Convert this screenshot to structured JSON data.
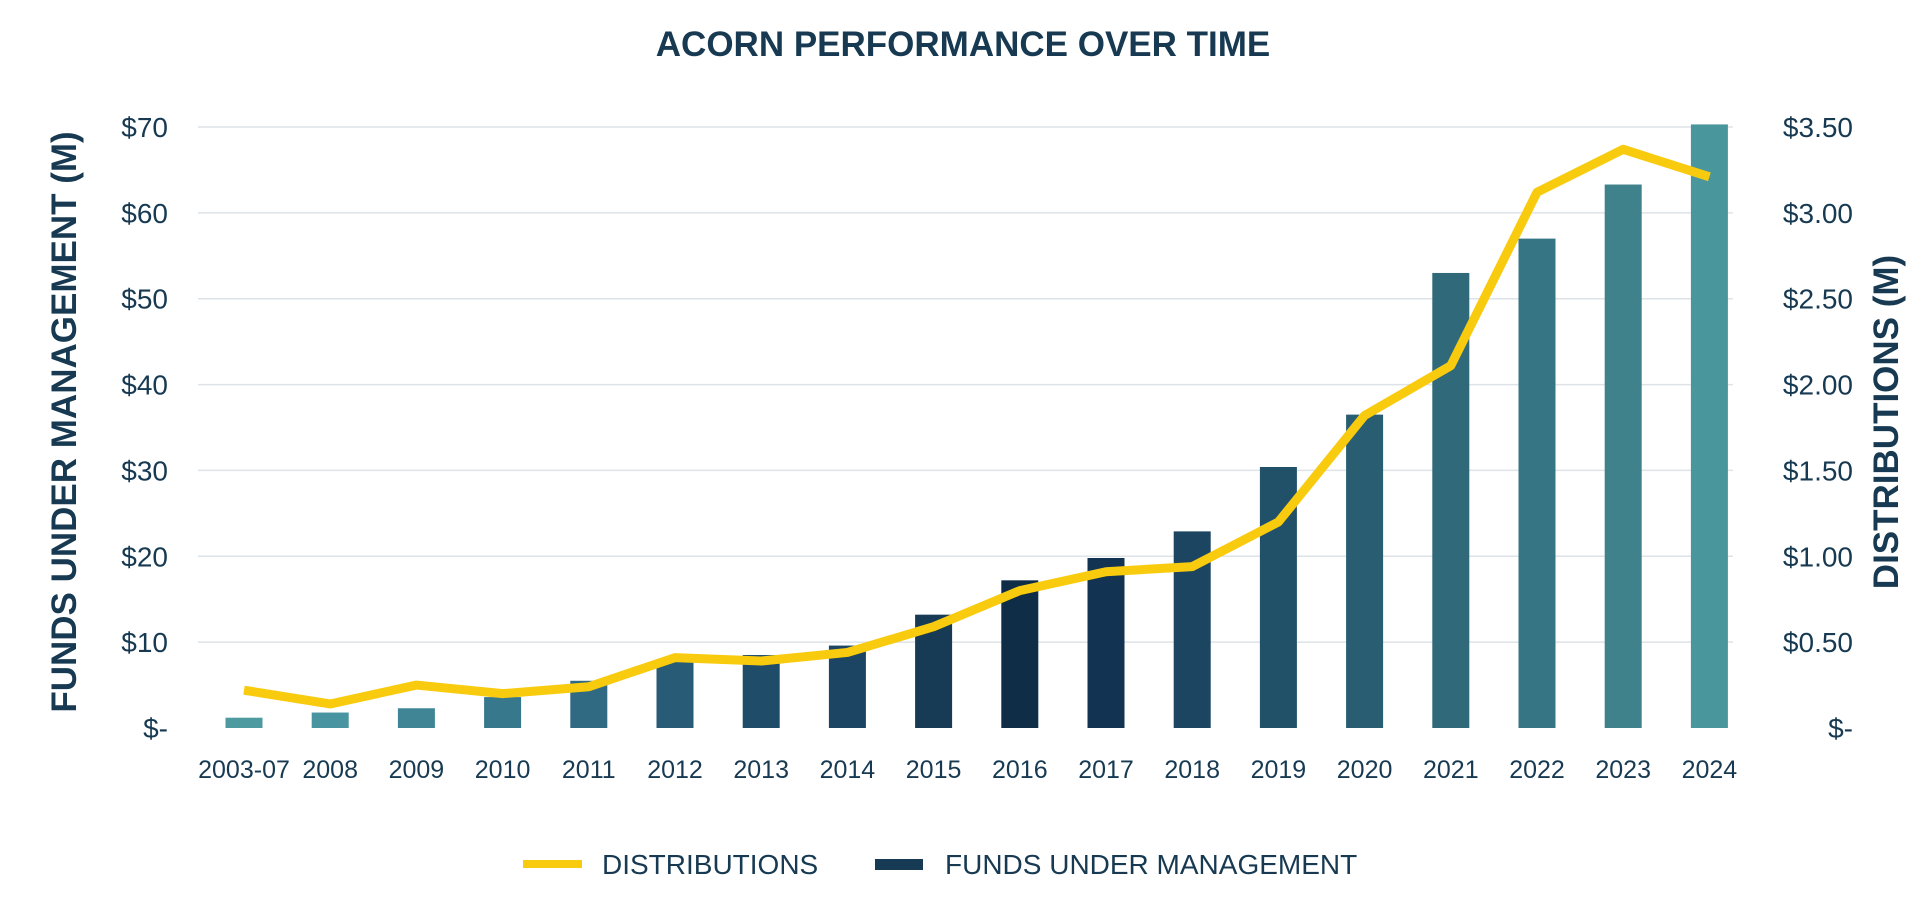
{
  "chart_data": {
    "type": "bar",
    "title": "ACORN PERFORMANCE OVER TIME",
    "categories": [
      "2003-07",
      "2008",
      "2009",
      "2010",
      "2011",
      "2012",
      "2013",
      "2014",
      "2015",
      "2016",
      "2017",
      "2018",
      "2019",
      "2020",
      "2021",
      "2022",
      "2023",
      "2024"
    ],
    "ylabel": "FUNDS UNDER MANAGEMENT (M)",
    "y2label": "DISTRIBUTIONS (M)",
    "ylim": [
      0,
      70
    ],
    "y2lim": [
      0,
      3.5
    ],
    "yticks": [
      "$-",
      "$10",
      "$20",
      "$30",
      "$40",
      "$50",
      "$60",
      "$70"
    ],
    "y2ticks": [
      "$-",
      "$0.50",
      "$1.00",
      "$1.50",
      "$2.00",
      "$2.50",
      "$3.00",
      "$3.50"
    ],
    "grid": true,
    "legend_position": "bottom",
    "series": [
      {
        "name": "FUNDS UNDER MANAGEMENT",
        "type": "bar",
        "axis": "left",
        "values": [
          1.2,
          1.8,
          2.3,
          3.6,
          5.5,
          7.7,
          8.5,
          9.6,
          13.2,
          17.2,
          19.8,
          22.9,
          30.4,
          36.5,
          53.0,
          57.0,
          63.3,
          70.3
        ]
      },
      {
        "name": "DISTRIBUTIONS",
        "type": "line",
        "axis": "right",
        "values": [
          0.22,
          0.14,
          0.25,
          0.2,
          0.24,
          0.41,
          0.39,
          0.44,
          0.59,
          0.8,
          0.91,
          0.94,
          1.2,
          1.82,
          2.11,
          3.12,
          3.37,
          3.21
        ]
      }
    ],
    "bar_colors": [
      "#4d9aa0",
      "#4894a0",
      "#3f8595",
      "#37788c",
      "#2f6a82",
      "#275b76",
      "#1f4d69",
      "#1c4563",
      "#173a55",
      "#102d48",
      "#123352",
      "#1b4560",
      "#215169",
      "#285d72",
      "#2f697a",
      "#367583",
      "#3f828b",
      "#4a969d"
    ],
    "line_color": "#f9cb0e"
  }
}
